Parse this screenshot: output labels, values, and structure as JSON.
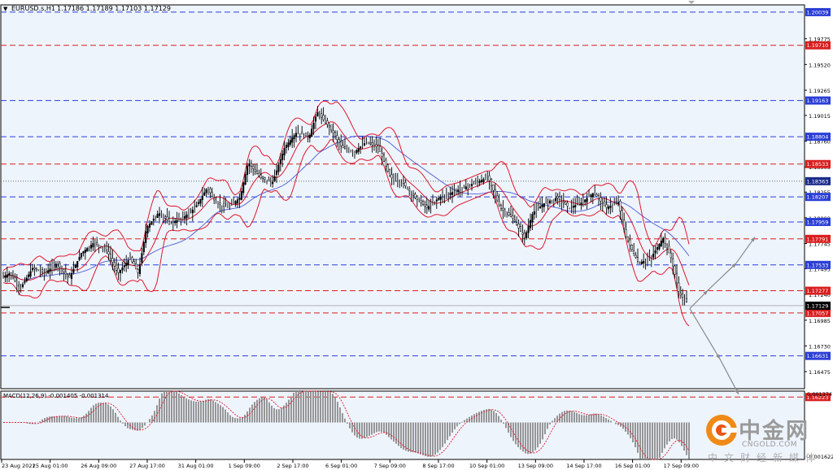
{
  "header": {
    "arrow": "▼",
    "symbol": "EURUSD.s,H1",
    "ohlc": "1.17186 1.17189 1.17103 1.17129"
  },
  "chart_data": {
    "type": "candlestick",
    "symbol": "EURUSD.s",
    "timeframe": "H1",
    "price_range": [
      1.16306,
      1.20111
    ],
    "last_close": 1.17129,
    "price_tick_labels": [
      1.19775,
      1.1952,
      1.19265,
      1.19015,
      1.1876,
      1.18505,
      1.18255,
      1.18,
      1.17745,
      1.17495,
      1.1724,
      1.16985,
      1.1673,
      1.16475
    ],
    "time_tick_labels": [
      "23 Aug 2021",
      "25 Aug 01:00",
      "26 Aug 09:00",
      "27 Aug 17:00",
      "31 Aug 01:00",
      "1 Sep 09:00",
      "2 Sep 17:00",
      "6 Sep 01:00",
      "7 Sep 09:00",
      "8 Sep 17:00",
      "10 Sep 01:00",
      "13 Sep 09:00",
      "14 Sep 17:00",
      "16 Sep 01:00",
      "17 Sep 09:00"
    ],
    "horizontal_levels": [
      {
        "value": 1.20039,
        "label": "1.20039",
        "color": "#2b3ed6"
      },
      {
        "value": 1.1971,
        "label": "1.19710",
        "color": "#d91e1e"
      },
      {
        "value": 1.19163,
        "label": "1.19163",
        "color": "#2b3ed6"
      },
      {
        "value": 1.18804,
        "label": "1.18804",
        "color": "#2b3ed6"
      },
      {
        "value": 1.18533,
        "label": "1.18533",
        "color": "#d91e1e"
      },
      {
        "value": 1.18207,
        "label": "1.18207",
        "color": "#2b3ed6"
      },
      {
        "value": 1.17959,
        "label": "1.17959",
        "color": "#2b3ed6"
      },
      {
        "value": 1.17791,
        "label": "1.17791",
        "color": "#d91e1e"
      },
      {
        "value": 1.17533,
        "label": "1.17533",
        "color": "#2b3ed6"
      },
      {
        "value": 1.17277,
        "label": "1.17277",
        "color": "#d91e1e"
      },
      {
        "value": 1.17057,
        "label": "1.17057",
        "color": "#d91e1e"
      },
      {
        "value": 1.16631,
        "label": "1.16631",
        "color": "#2b3ed6"
      },
      {
        "value": 1.16223,
        "label": "1.16223",
        "color": "#d91e1e"
      }
    ],
    "current_price_label": "1.17129",
    "dotted_level": 1.18363,
    "dotted_level_label": "1.18363",
    "close_path": [
      [
        0,
        1.174
      ],
      [
        12,
        1.1745
      ],
      [
        25,
        1.173
      ],
      [
        40,
        1.175
      ],
      [
        55,
        1.1745
      ],
      [
        70,
        1.1755
      ],
      [
        85,
        1.174
      ],
      [
        100,
        1.1765
      ],
      [
        115,
        1.1775
      ],
      [
        130,
        1.177
      ],
      [
        145,
        1.1745
      ],
      [
        160,
        1.176
      ],
      [
        170,
        1.1745
      ],
      [
        180,
        1.179
      ],
      [
        195,
        1.1805
      ],
      [
        210,
        1.1795
      ],
      [
        225,
        1.18
      ],
      [
        240,
        1.181
      ],
      [
        255,
        1.183
      ],
      [
        265,
        1.1815
      ],
      [
        280,
        1.181
      ],
      [
        295,
        1.182
      ],
      [
        305,
        1.1855
      ],
      [
        320,
        1.184
      ],
      [
        335,
        1.1835
      ],
      [
        350,
        1.187
      ],
      [
        365,
        1.1885
      ],
      [
        380,
        1.188
      ],
      [
        390,
        1.1905
      ],
      [
        405,
        1.189
      ],
      [
        420,
        1.187
      ],
      [
        435,
        1.1865
      ],
      [
        450,
        1.1875
      ],
      [
        465,
        1.187
      ],
      [
        480,
        1.184
      ],
      [
        495,
        1.1835
      ],
      [
        510,
        1.182
      ],
      [
        525,
        1.181
      ],
      [
        540,
        1.182
      ],
      [
        555,
        1.1825
      ],
      [
        570,
        1.183
      ],
      [
        585,
        1.1835
      ],
      [
        600,
        1.184
      ],
      [
        615,
        1.181
      ],
      [
        630,
        1.18
      ],
      [
        645,
        1.178
      ],
      [
        655,
        1.1805
      ],
      [
        670,
        1.1815
      ],
      [
        685,
        1.182
      ],
      [
        700,
        1.181
      ],
      [
        715,
        1.1815
      ],
      [
        730,
        1.1825
      ],
      [
        745,
        1.181
      ],
      [
        760,
        1.1815
      ],
      [
        770,
        1.178
      ],
      [
        785,
        1.1755
      ],
      [
        800,
        1.176
      ],
      [
        815,
        1.178
      ],
      [
        825,
        1.176
      ],
      [
        835,
        1.1725
      ],
      [
        848,
        1.1713
      ]
    ],
    "forecast_paths": [
      {
        "points": [
          [
            848,
            1.171
          ],
          [
            870,
            1.1728
          ],
          [
            905,
            1.1755
          ],
          [
            928,
            1.1781
          ]
        ],
        "color": "#8a8a8a"
      },
      {
        "points": [
          [
            848,
            1.171
          ],
          [
            885,
            1.166
          ],
          [
            908,
            1.1625
          ]
        ],
        "color": "#8a8a8a"
      }
    ],
    "indicators": [
      {
        "name": "Bollinger Bands",
        "color": "#e0182d"
      },
      {
        "name": "Moving Average",
        "color": "#4a5bd6"
      }
    ],
    "macd": {
      "label": "MACD(12,26,9) -0.001405 -0.001314",
      "axis_labels": [
        "0.001374",
        "-0.001622"
      ],
      "range": [
        -0.001622,
        0.001374
      ],
      "hist_color": "#8c8c8c",
      "signal_color": "#e0182d"
    }
  },
  "watermark": {
    "title": "中金网",
    "url": "CNGOLD.COM",
    "subtitle": "中文财经新媒体",
    "logo_colors": [
      "#f08a17",
      "#e8561a"
    ]
  }
}
